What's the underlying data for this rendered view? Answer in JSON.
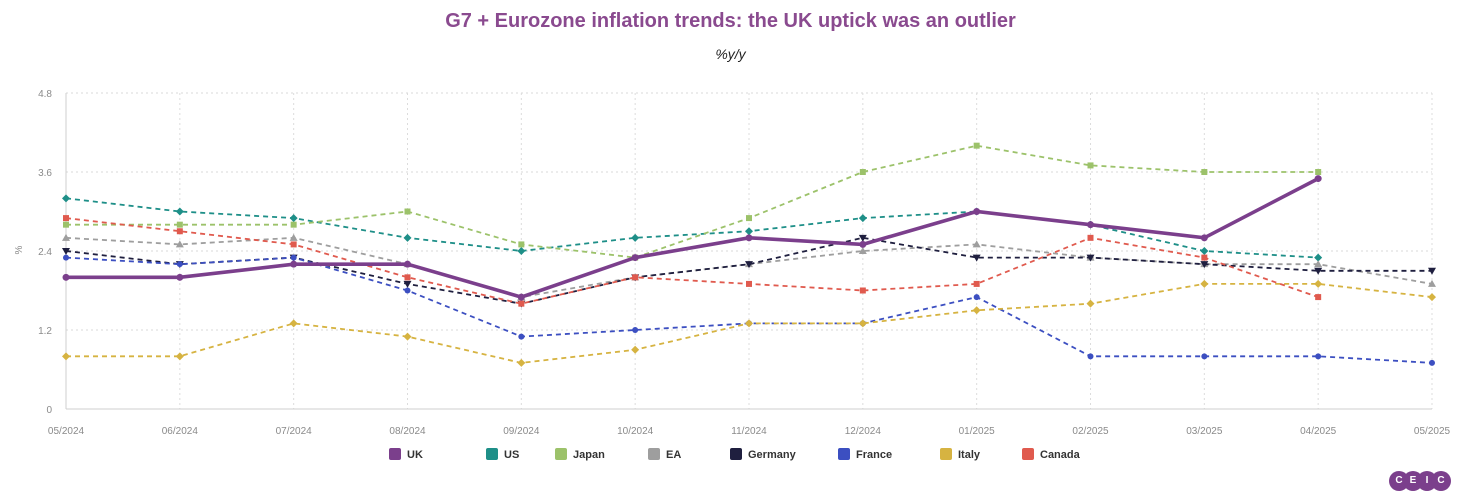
{
  "chart_data": {
    "type": "line",
    "title": "G7 + Eurozone inflation trends: the UK uptick was an outlier",
    "subtitle": "%y/y",
    "ylabel": "%",
    "ylim": [
      0,
      4.8
    ],
    "yticks": [
      "0",
      "1.2",
      "2.4",
      "3.6",
      "4.8"
    ],
    "ytick_values": [
      0,
      1.2,
      2.4,
      3.6,
      4.8
    ],
    "grid": true,
    "legend_position": "bottom",
    "x": [
      "05/2024",
      "06/2024",
      "07/2024",
      "08/2024",
      "09/2024",
      "10/2024",
      "11/2024",
      "12/2024",
      "01/2025",
      "02/2025",
      "03/2025",
      "04/2025",
      "05/2025"
    ],
    "series": [
      {
        "name": "UK",
        "color": "#7b3f8c",
        "marker": "circle",
        "dashed": false,
        "values": [
          2.0,
          2.0,
          2.2,
          2.2,
          1.7,
          2.3,
          2.6,
          2.5,
          3.0,
          2.8,
          2.6,
          3.5,
          null
        ]
      },
      {
        "name": "US",
        "color": "#1e8f88",
        "marker": "diamond",
        "dashed": true,
        "values": [
          3.2,
          3.0,
          2.9,
          2.6,
          2.4,
          2.6,
          2.7,
          2.9,
          3.0,
          2.8,
          2.4,
          2.3,
          null
        ]
      },
      {
        "name": "Japan",
        "color": "#9cc26a",
        "marker": "square",
        "dashed": true,
        "values": [
          2.8,
          2.8,
          2.8,
          3.0,
          2.5,
          2.3,
          2.9,
          3.6,
          4.0,
          3.7,
          3.6,
          3.6,
          null
        ]
      },
      {
        "name": "EA",
        "color": "#9e9e9e",
        "marker": "triangle",
        "dashed": true,
        "values": [
          2.6,
          2.5,
          2.6,
          2.2,
          1.7,
          2.0,
          2.2,
          2.4,
          2.5,
          2.3,
          2.2,
          2.2,
          1.9
        ]
      },
      {
        "name": "Germany",
        "color": "#1f1f3f",
        "marker": "triangle-down",
        "dashed": true,
        "values": [
          2.4,
          2.2,
          2.3,
          1.9,
          1.6,
          2.0,
          2.2,
          2.6,
          2.3,
          2.3,
          2.2,
          2.1,
          2.1
        ]
      },
      {
        "name": "France",
        "color": "#3c4fc1",
        "marker": "circle",
        "dashed": true,
        "values": [
          2.3,
          2.2,
          2.3,
          1.8,
          1.1,
          1.2,
          1.3,
          1.3,
          1.7,
          0.8,
          0.8,
          0.8,
          0.7
        ]
      },
      {
        "name": "Italy",
        "color": "#d6b341",
        "marker": "diamond",
        "dashed": true,
        "values": [
          0.8,
          0.8,
          1.3,
          1.1,
          0.7,
          0.9,
          1.3,
          1.3,
          1.5,
          1.6,
          1.9,
          1.9,
          1.7
        ]
      },
      {
        "name": "Canada",
        "color": "#e05a4e",
        "marker": "square",
        "dashed": true,
        "values": [
          2.9,
          2.7,
          2.5,
          2.0,
          1.6,
          2.0,
          1.9,
          1.8,
          1.9,
          2.6,
          2.3,
          1.7,
          null
        ]
      }
    ]
  },
  "branding": {
    "logo_letters": [
      "C",
      "E",
      "I",
      "C"
    ]
  }
}
